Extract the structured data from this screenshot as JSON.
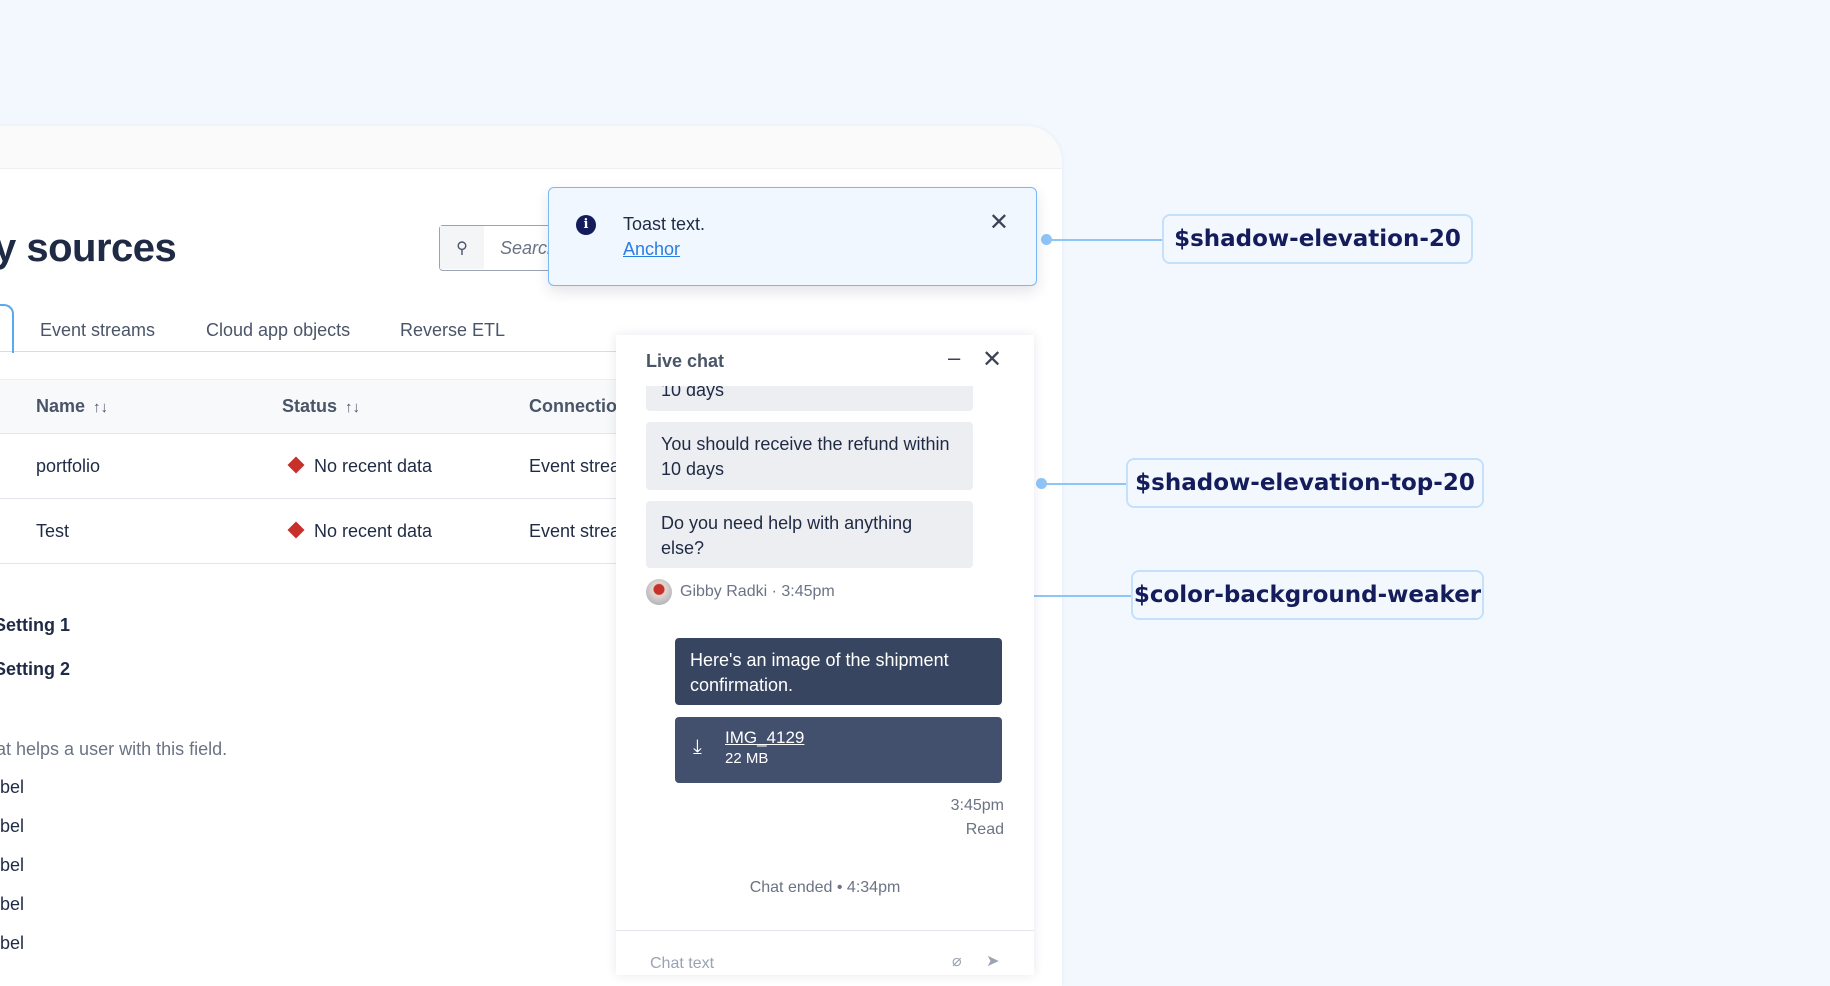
{
  "page": {
    "title": "y sources",
    "search_placeholder": "Search",
    "tabs": [
      "Event streams",
      "Cloud app objects",
      "Reverse ETL"
    ],
    "table": {
      "headers": [
        "Name",
        "Status",
        "Connection"
      ],
      "rows": [
        {
          "name": "portfolio",
          "status": "No recent data",
          "connection": "Event strea"
        },
        {
          "name": "Test",
          "status": "No recent data",
          "connection": "Event strea"
        }
      ]
    },
    "settings": [
      "Setting 1",
      "Setting 2"
    ],
    "help_text": "at helps a user with this field.",
    "labels": [
      "bel",
      "bel",
      "bel",
      "bel",
      "bel"
    ]
  },
  "toast": {
    "text": "Toast text.",
    "anchor": "Anchor",
    "icon": "info-icon"
  },
  "chat": {
    "title": "Live chat",
    "messages": [
      "10 days",
      "You should receive the refund within 10 days",
      "Do you need help with anything else?"
    ],
    "author": "Gibby Radki · 3:45pm",
    "outgoing": "Here's an image of the shipment confirmation.",
    "file": {
      "name": "IMG_4129",
      "size": "22 MB"
    },
    "time": "3:45pm",
    "read": "Read",
    "ended": "Chat ended • 4:34pm",
    "input_placeholder": "Chat text"
  },
  "annotations": [
    "$shadow-elevation-20",
    "$shadow-elevation-top-20",
    "$color-background-weaker"
  ],
  "colors": {
    "accent": "#2a7de1",
    "annotation_line": "#8ec5f7",
    "error": "#c8302b",
    "dark_bubble": "#384560"
  }
}
